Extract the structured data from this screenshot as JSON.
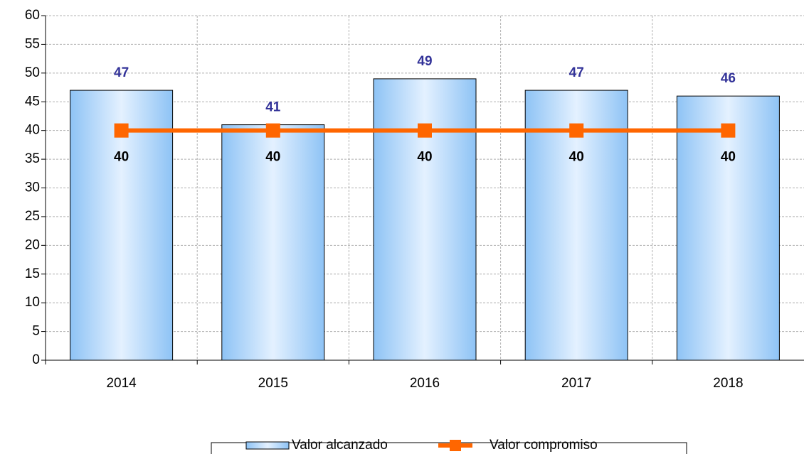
{
  "chart_data": {
    "type": "bar",
    "categories": [
      "2014",
      "2015",
      "2016",
      "2017",
      "2018"
    ],
    "series": [
      {
        "name": "Valor alcanzado",
        "type": "bar",
        "color": "#99ccff",
        "values": [
          47,
          41,
          49,
          47,
          46
        ]
      },
      {
        "name": "Valor compromiso",
        "type": "line",
        "color": "#ff6600",
        "values": [
          40,
          40,
          40,
          40,
          40
        ]
      }
    ],
    "ylim": [
      0,
      60
    ],
    "yticks": [
      0,
      5,
      10,
      15,
      20,
      25,
      30,
      35,
      40,
      45,
      50,
      55,
      60
    ],
    "grid": true
  }
}
